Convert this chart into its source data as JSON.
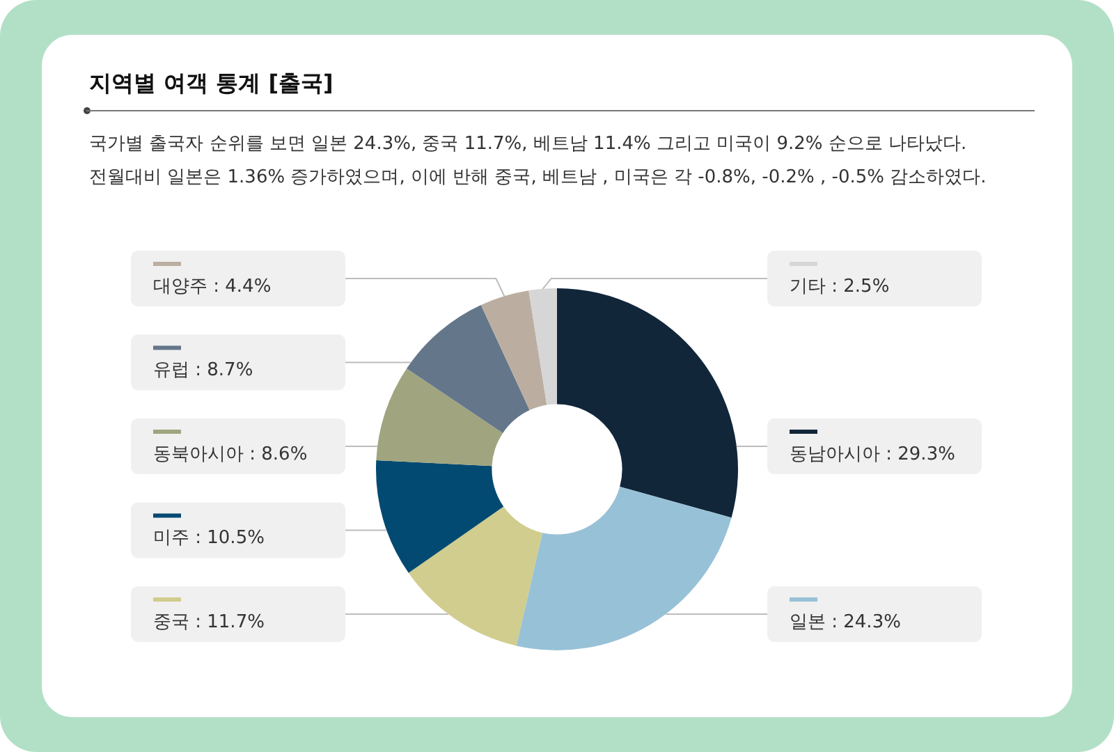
{
  "chart_data": {
    "type": "donut",
    "title": "지역별 여객 통계 [출국]",
    "subtitle": "국가별 출국자 순위를 보면 일본 24.3%, 중국 11.7%, 베트남 11.4% 그리고 미국이 9.2% 순으로 나타났다.\n전월대비 일본은 1.36% 증가하였으며, 이에 반해 중국, 베트남 , 미국은 각 -0.8%, -0.2% , -0.5% 감소하였다.",
    "categories": [
      "동남아시아",
      "일본",
      "중국",
      "미주",
      "동북아시아",
      "유럽",
      "대양주",
      "기타"
    ],
    "values": [
      29.3,
      24.3,
      11.7,
      10.5,
      8.6,
      8.7,
      4.4,
      2.5
    ],
    "colors": [
      "#12263a",
      "#97c1d6",
      "#d0cd8e",
      "#034a72",
      "#a0a57f",
      "#64768a",
      "#bbaea1",
      "#d6d6d6"
    ],
    "value_labels": [
      "29.3%",
      "24.3%",
      "11.7%",
      "10.5%",
      "8.6%",
      "8.7%",
      "4.4%",
      "2.5%"
    ],
    "legend": "right"
  }
}
